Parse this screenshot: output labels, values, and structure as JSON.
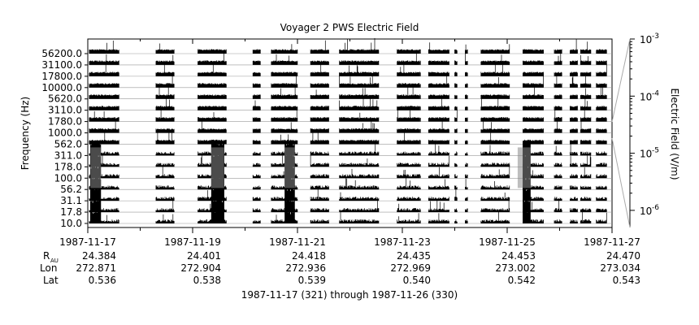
{
  "chart_data": {
    "type": "stacked-spectral-line-plot",
    "title": "Voyager 2 PWS Electric Field",
    "ylabel": "Frequency (Hz)",
    "right_axis_label": "Electric Field (V/m)",
    "frequency_channels_hz": [
      "56200.0",
      "31100.0",
      "17800.0",
      "10000.0",
      "5620.0",
      "3110.0",
      "1780.0",
      "1000.0",
      "562.0",
      "311.0",
      "178.0",
      "100.0",
      "56.2",
      "31.1",
      "17.8",
      "10.0"
    ],
    "right_axis_ticks": [
      {
        "base": "10",
        "exp": "-3",
        "value": 0.001
      },
      {
        "base": "10",
        "exp": "-4",
        "value": 0.0001
      },
      {
        "base": "10",
        "exp": "-5",
        "value": 1e-05
      },
      {
        "base": "10",
        "exp": "-6",
        "value": 1e-06
      }
    ],
    "x_range_days": [
      "1987-11-17",
      "1987-11-27"
    ],
    "x_tick_labels": [
      {
        "label": "1987-11-17",
        "day": 0
      },
      {
        "label": "1987-11-19",
        "day": 2
      },
      {
        "label": "1987-11-21",
        "day": 4
      },
      {
        "label": "1987-11-23",
        "day": 6
      },
      {
        "label": "1987-11-25",
        "day": 8
      },
      {
        "label": "1987-11-27",
        "day": 10
      }
    ],
    "ephemeris_labels": {
      "r": "R",
      "r_sub": "AU",
      "lon": "Lon",
      "lat": "Lat"
    },
    "ephemeris": [
      {
        "day": 0,
        "r": "24.384",
        "lon": "272.871",
        "lat": "0.536"
      },
      {
        "day": 2,
        "r": "24.401",
        "lon": "272.904",
        "lat": "0.538"
      },
      {
        "day": 4,
        "r": "24.418",
        "lon": "272.936",
        "lat": "0.539"
      },
      {
        "day": 6,
        "r": "24.435",
        "lon": "272.969",
        "lat": "0.540"
      },
      {
        "day": 8,
        "r": "24.453",
        "lon": "273.002",
        "lat": "0.542"
      },
      {
        "day": 10,
        "r": "24.470",
        "lon": "273.034",
        "lat": "0.543"
      }
    ],
    "data_segments_days": [
      [
        0.03,
        0.6
      ],
      [
        1.3,
        1.65
      ],
      [
        2.1,
        2.65
      ],
      [
        3.15,
        3.3
      ],
      [
        3.5,
        4.0
      ],
      [
        4.25,
        4.6
      ],
      [
        4.8,
        5.55
      ],
      [
        5.9,
        6.35
      ],
      [
        6.5,
        6.9
      ],
      [
        7.0,
        7.05
      ],
      [
        7.2,
        7.25
      ],
      [
        7.5,
        8.05
      ],
      [
        8.3,
        8.7
      ],
      [
        8.9,
        9.05
      ],
      [
        9.2,
        9.35
      ],
      [
        9.4,
        9.6
      ],
      [
        9.7,
        9.9
      ]
    ],
    "activity_bursts": [
      {
        "start": 0.05,
        "end": 0.25,
        "channels_from": 9,
        "level": 0.9
      },
      {
        "start": 2.35,
        "end": 2.6,
        "channels_from": 9,
        "level": 1.0
      },
      {
        "start": 3.75,
        "end": 3.95,
        "channels_from": 9,
        "level": 0.9
      },
      {
        "start": 8.2,
        "end": 8.45,
        "channels_from": 9,
        "level": 0.95
      }
    ],
    "footer": "1987-11-17 (321) through 1987-11-26 (330)"
  }
}
